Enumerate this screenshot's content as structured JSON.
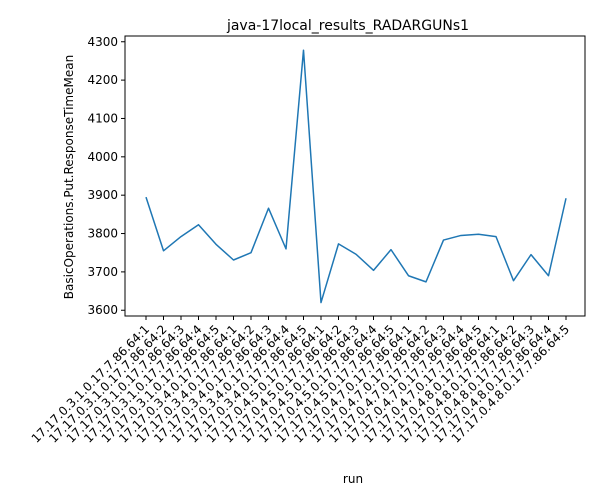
{
  "chart_data": {
    "type": "line",
    "title": "java-17local_results_RADARGUNs1",
    "xlabel": "run",
    "ylabel": "BasicOperations.Put.ResponseTimeMean",
    "categories": [
      "17.17.0.3.1.0.17.7.86.64:1",
      "17.17.0.3.1.0.17.7.86.64:2",
      "17.17.0.3.1.0.17.7.86.64:3",
      "17.17.0.3.1.0.17.7.86.64:4",
      "17.17.0.3.1.0.17.7.86.64:5",
      "17.17.0.3.4.0.17.7.86.64:1",
      "17.17.0.3.4.0.17.7.86.64:2",
      "17.17.0.3.4.0.17.7.86.64:3",
      "17.17.0.3.4.0.17.7.86.64:4",
      "17.17.0.3.4.0.17.7.86.64:5",
      "17.17.0.4.5.0.17.7.86.64:1",
      "17.17.0.4.5.0.17.7.86.64:2",
      "17.17.0.4.5.0.17.7.86.64:3",
      "17.17.0.4.5.0.17.7.86.64:4",
      "17.17.0.4.5.0.17.7.86.64:5",
      "17.17.0.4.7.0.17.7.86.64:1",
      "17.17.0.4.7.0.17.7.86.64:2",
      "17.17.0.4.7.0.17.7.86.64:3",
      "17.17.0.4.7.0.17.7.86.64:4",
      "17.17.0.4.7.0.17.7.86.64:5",
      "17.17.0.4.8.0.17.7.86.64:1",
      "17.17.0.4.8.0.17.7.86.64:2",
      "17.17.0.4.8.0.17.7.86.64:3",
      "17.17.0.4.8.0.17.7.86.64:4",
      "17.17.0.4.8.0.17.7.86.64:5"
    ],
    "series": [
      {
        "values": [
          3895,
          3755,
          3792,
          3823,
          3772,
          3731,
          3750,
          3866,
          3760,
          4278,
          3620,
          3773,
          3746,
          3704,
          3758,
          3690,
          3674,
          3783,
          3795,
          3798,
          3792,
          3677,
          3745,
          3690,
          3892
        ]
      }
    ],
    "ylim": [
      3585,
      4315
    ],
    "yticks": [
      3600,
      3700,
      3800,
      3900,
      4000,
      4100,
      4200,
      4300
    ],
    "grid": false,
    "legend": "none",
    "line_color": "#1f77b4"
  }
}
